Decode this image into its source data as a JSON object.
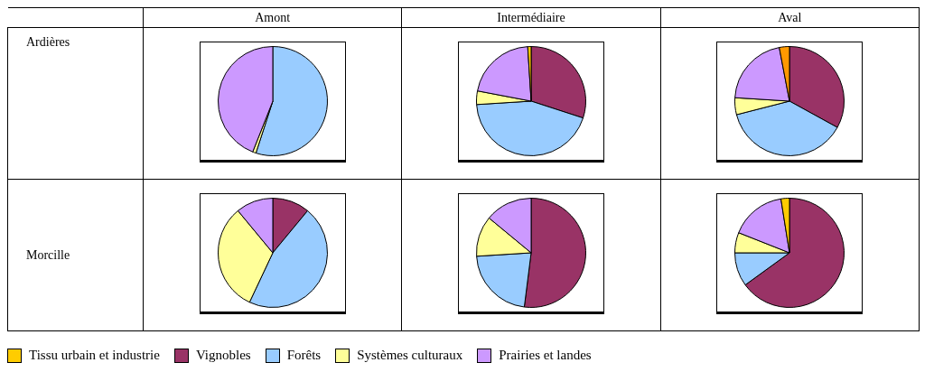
{
  "chart_data": [
    {
      "type": "pie",
      "title": "Amont",
      "ylabel": "Ardières",
      "legend": "bottom",
      "categories": [
        "Vignobles",
        "Forêts",
        "Systèmes culturaux",
        "Prairies et landes",
        "Tissu urbain et industrie"
      ],
      "values": [
        0,
        55,
        1,
        44,
        0
      ],
      "colors": [
        "#993366",
        "#99ccff",
        "#ffff99",
        "#cc99ff",
        "#ffcc00"
      ]
    },
    {
      "type": "pie",
      "title": "Intermédiaire",
      "categories": [
        null,
        null,
        null,
        null,
        null
      ],
      "values": [
        30,
        44,
        4,
        21,
        1
      ],
      "colors": [
        "#993366",
        "#99ccff",
        "#ffff99",
        "#cc99ff",
        "#ffcc00"
      ]
    },
    {
      "type": "pie",
      "title": "Aval",
      "categories": [
        null,
        null,
        null,
        null,
        null
      ],
      "values": [
        33,
        38,
        5,
        21,
        3
      ],
      "colors": [
        "#993366",
        "#99ccff",
        "#ffff99",
        "#cc99ff",
        "#ff9900"
      ]
    },
    {
      "type": "pie",
      "ylabel": "Morcille",
      "categories": [
        null,
        null,
        null,
        null,
        null
      ],
      "values": [
        11,
        46,
        32,
        11,
        0
      ],
      "colors": [
        "#993366",
        "#99ccff",
        "#ffff99",
        "#cc99ff",
        "#ffcc00"
      ]
    },
    {
      "type": "pie",
      "categories": [
        null,
        null,
        null,
        null,
        null
      ],
      "values": [
        52,
        22,
        12,
        14,
        0
      ],
      "colors": [
        "#993366",
        "#99ccff",
        "#ffff99",
        "#cc99ff",
        "#ffcc00"
      ]
    },
    {
      "type": "pie",
      "categories": [
        null,
        null,
        null,
        null,
        null
      ],
      "values": [
        65,
        10,
        6,
        16.5,
        2.5
      ],
      "colors": [
        "#993366",
        "#99ccff",
        "#ffff99",
        "#cc99ff",
        "#ffcc00"
      ]
    }
  ]
}
